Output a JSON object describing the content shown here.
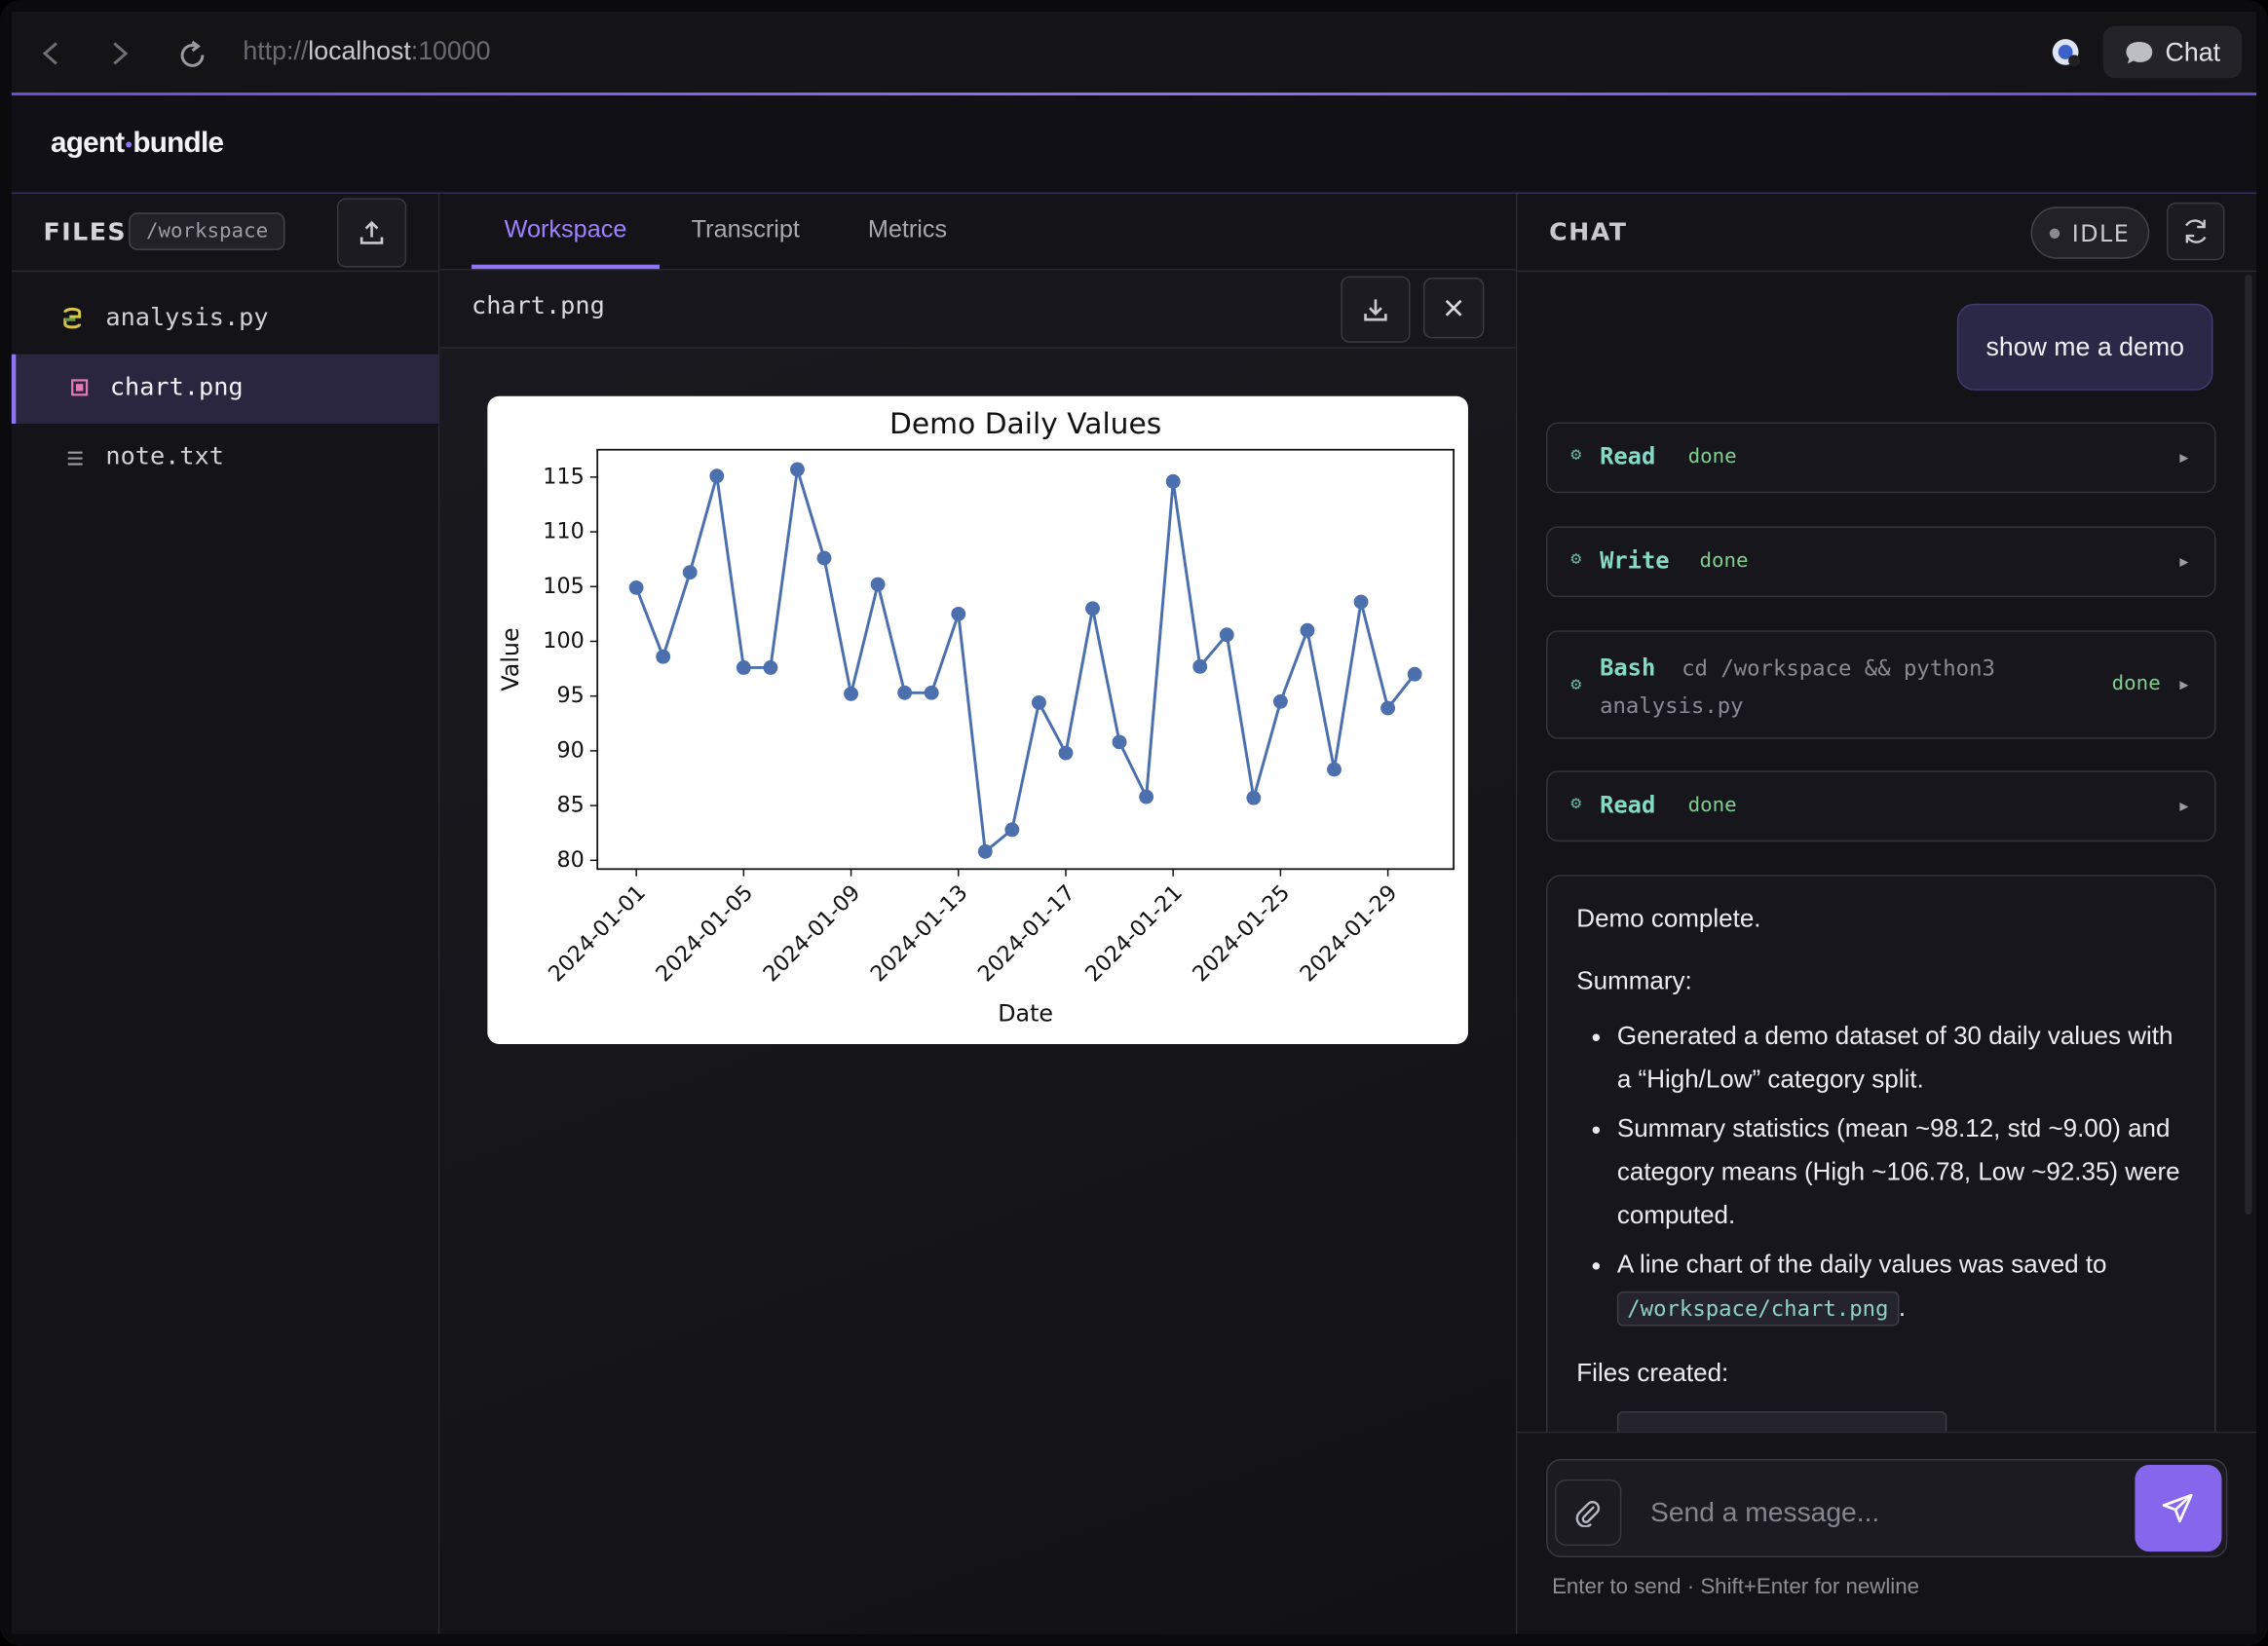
{
  "browser": {
    "url_scheme": "http://",
    "url_host": "localhost",
    "url_port": ":10000",
    "chat_button": "Chat"
  },
  "app": {
    "logo_left": "agent",
    "logo_right": "bundle"
  },
  "files": {
    "title": "FILES",
    "path": "/workspace",
    "items": [
      "analysis.py",
      "chart.png",
      "note.txt"
    ]
  },
  "tabs": [
    "Workspace",
    "Transcript",
    "Metrics"
  ],
  "viewer": {
    "filename": "chart.png"
  },
  "chart_data": {
    "type": "line",
    "title": "Demo Daily Values",
    "x_label": "Date",
    "y_label": "Value",
    "color": "#4c70ae",
    "categories": [
      "2024-01-01",
      "2024-01-02",
      "2024-01-03",
      "2024-01-04",
      "2024-01-05",
      "2024-01-06",
      "2024-01-07",
      "2024-01-08",
      "2024-01-09",
      "2024-01-10",
      "2024-01-11",
      "2024-01-12",
      "2024-01-13",
      "2024-01-14",
      "2024-01-15",
      "2024-01-16",
      "2024-01-17",
      "2024-01-18",
      "2024-01-19",
      "2024-01-20",
      "2024-01-21",
      "2024-01-22",
      "2024-01-23",
      "2024-01-24",
      "2024-01-25",
      "2024-01-26",
      "2024-01-27",
      "2024-01-28",
      "2024-01-29",
      "2024-01-30"
    ],
    "values": [
      104.9,
      98.6,
      106.3,
      115.1,
      97.6,
      97.6,
      115.7,
      107.6,
      95.2,
      105.2,
      95.3,
      95.3,
      102.5,
      80.8,
      82.8,
      94.4,
      89.8,
      103.0,
      90.8,
      85.8,
      114.6,
      97.7,
      100.6,
      85.7,
      94.5,
      101.0,
      88.3,
      103.6,
      93.9,
      97.0
    ],
    "xticks": [
      "2024-01-01",
      "2024-01-05",
      "2024-01-09",
      "2024-01-13",
      "2024-01-17",
      "2024-01-21",
      "2024-01-25",
      "2024-01-29"
    ],
    "ylim": [
      79.2,
      117.5
    ],
    "yticks": [
      80,
      85,
      90,
      95,
      100,
      105,
      110,
      115
    ],
    "grid": false,
    "markers": true
  },
  "chat": {
    "title": "CHAT",
    "status": "IDLE",
    "user_message": "show me a demo",
    "tools": [
      {
        "name": "Read",
        "status": "done"
      },
      {
        "name": "Write",
        "status": "done"
      },
      {
        "name": "Bash",
        "command": "cd /workspace && python3 analysis.py",
        "status": "done"
      },
      {
        "name": "Read",
        "status": "done"
      }
    ],
    "reply": {
      "intro": "Demo complete.",
      "summary_heading": "Summary:",
      "bullets": [
        "Generated a demo dataset of 30 daily values with a “High/Low” category split.",
        "Summary statistics (mean ~98.12, std ~9.00) and category means (High ~106.78, Low ~92.35) were computed.",
        {
          "text": "A line chart of the daily values was saved to",
          "code": "/workspace/chart.png",
          "end": "."
        }
      ],
      "files_heading": "Files created:"
    },
    "input_placeholder": "Send a message...",
    "hint": "Enter to send · Shift+Enter for newline"
  }
}
